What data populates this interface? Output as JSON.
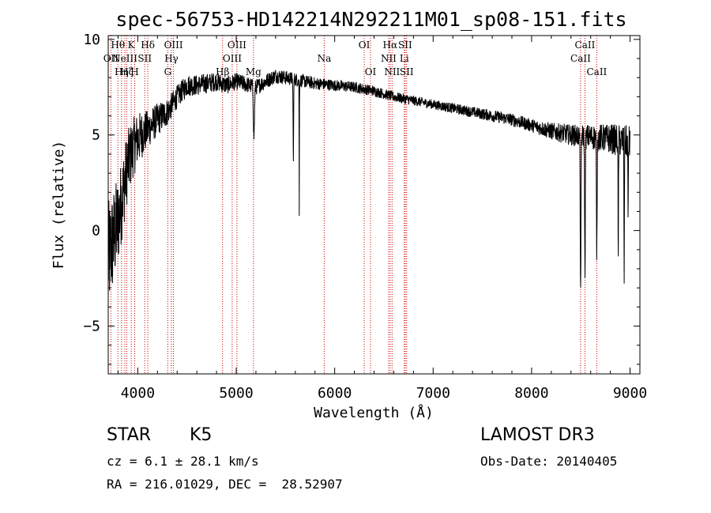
{
  "chart_data": {
    "type": "line",
    "title": "spec-56753-HD142214N292211M01_sp08-151.fits",
    "xlabel": "Wavelength (Å)",
    "ylabel": "Flux (relative)",
    "xlim": [
      3700,
      9100
    ],
    "ylim": [
      -7.5,
      10.2
    ],
    "xticks": [
      4000,
      5000,
      6000,
      7000,
      8000,
      9000
    ],
    "yticks": [
      -5,
      0,
      5,
      10
    ],
    "series": [
      {
        "name": "spectrum",
        "color": "#000000",
        "continuum": {
          "x": [
            3700,
            3750,
            3800,
            3850,
            3900,
            3950,
            4000,
            4100,
            4200,
            4300,
            4400,
            4500,
            4600,
            4700,
            4800,
            4900,
            5000,
            5200,
            5400,
            5600,
            5800,
            6000,
            6200,
            6400,
            6600,
            6800,
            7000,
            7200,
            7400,
            7600,
            7800,
            8000,
            8200,
            8400,
            8600,
            8800,
            9000
          ],
          "y": [
            -1.5,
            -0.5,
            0.5,
            2.0,
            3.5,
            4.3,
            4.8,
            5.3,
            5.8,
            6.2,
            7.0,
            7.6,
            7.6,
            7.7,
            7.8,
            7.6,
            7.8,
            7.5,
            8.1,
            7.9,
            7.7,
            7.6,
            7.5,
            7.3,
            7.0,
            6.8,
            6.6,
            6.4,
            6.2,
            6.0,
            5.8,
            5.5,
            5.2,
            5.0,
            4.9,
            4.8,
            4.6
          ]
        },
        "absorption_features": [
          {
            "x": 5180,
            "depth": 2.6,
            "width": 8
          },
          {
            "x": 5580,
            "depth": 4.2,
            "width": 4
          },
          {
            "x": 5640,
            "depth": 7.5,
            "width": 2
          },
          {
            "x": 8498,
            "depth": 8.5,
            "width": 5
          },
          {
            "x": 8542,
            "depth": 7.0,
            "width": 5
          },
          {
            "x": 8662,
            "depth": 6.0,
            "width": 5
          },
          {
            "x": 8880,
            "depth": 6.8,
            "width": 3
          },
          {
            "x": 8940,
            "depth": 7.3,
            "width": 3
          },
          {
            "x": 8980,
            "depth": 4.5,
            "width": 3
          }
        ],
        "noise_amplitude": {
          "x": [
            3700,
            3900,
            4100,
            4400,
            5000,
            6000,
            7000,
            8000,
            8500,
            9000
          ],
          "y": [
            3.0,
            1.8,
            1.0,
            0.6,
            0.45,
            0.3,
            0.25,
            0.35,
            0.6,
            0.9
          ]
        }
      }
    ],
    "spectral_lines": [
      {
        "x": 3727,
        "label": "OII",
        "row": 1
      },
      {
        "x": 3798,
        "label": "Hθ",
        "row": 0
      },
      {
        "x": 3835,
        "label": "Hη",
        "row": 2
      },
      {
        "x": 3869,
        "label": "NeIII",
        "row": 1
      },
      {
        "x": 3889,
        "label": "Hζ",
        "row": 2
      },
      {
        "x": 3934,
        "label": "K",
        "row": 0
      },
      {
        "x": 3969,
        "label": "H",
        "row": 2
      },
      {
        "x": 4071,
        "label": "SII",
        "row": 1
      },
      {
        "x": 4102,
        "label": "Hδ",
        "row": 0
      },
      {
        "x": 4305,
        "label": "G",
        "row": 2
      },
      {
        "x": 4341,
        "label": "Hγ",
        "row": 1
      },
      {
        "x": 4363,
        "label": "OIII",
        "row": 0
      },
      {
        "x": 4861,
        "label": "Hβ",
        "row": 2
      },
      {
        "x": 4959,
        "label": "OIII",
        "row": 1
      },
      {
        "x": 5007,
        "label": "OIII",
        "row": 0
      },
      {
        "x": 5175,
        "label": "Mg",
        "row": 2
      },
      {
        "x": 5894,
        "label": "Na",
        "row": 1
      },
      {
        "x": 6300,
        "label": "OI",
        "row": 0
      },
      {
        "x": 6364,
        "label": "OI",
        "row": 2
      },
      {
        "x": 6548,
        "label": "NII",
        "row": 1
      },
      {
        "x": 6563,
        "label": "Hα",
        "row": 0
      },
      {
        "x": 6583,
        "label": "NII",
        "row": 2
      },
      {
        "x": 6707,
        "label": "Li",
        "row": 1
      },
      {
        "x": 6716,
        "label": "SII",
        "row": 0
      },
      {
        "x": 6731,
        "label": "SII",
        "row": 2
      },
      {
        "x": 8498,
        "label": "CaII",
        "row": 1
      },
      {
        "x": 8542,
        "label": "CaII",
        "row": 0
      },
      {
        "x": 8662,
        "label": "CaII",
        "row": 2
      }
    ]
  },
  "footer": {
    "object_class": "STAR",
    "subclass": "K5",
    "survey": "LAMOST DR3",
    "redshift_text": "cz = 6.1 ± 28.1 km/s",
    "obs_date_text": "Obs-Date: 20140405",
    "coords_text": "RA = 216.01029, DEC =  28.52907"
  },
  "colors": {
    "spectrum": "#000000",
    "line_marker": "#c80000",
    "axis": "#000000"
  }
}
